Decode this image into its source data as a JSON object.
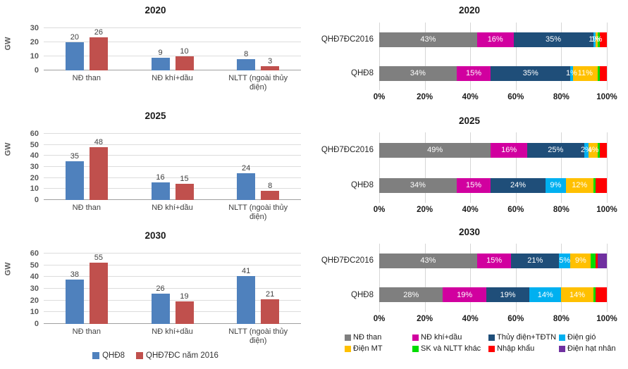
{
  "page": {
    "background": "#ffffff"
  },
  "left_panel": {
    "unit_label": "GW",
    "legend": [
      {
        "label": "QHĐ8",
        "color": "#4F81BD"
      },
      {
        "label": "QHĐ7ĐC năm 2016",
        "color": "#C0504D"
      }
    ]
  },
  "right_panel": {
    "legend": [
      {
        "label": "NĐ than",
        "color": "#7F7F7F"
      },
      {
        "label": "NĐ khí+dầu",
        "color": "#D1009F"
      },
      {
        "label": "Thủy điện+TĐTN",
        "color": "#1F4E79"
      },
      {
        "label": "Điện gió",
        "color": "#00B0F0"
      },
      {
        "label": "Điện MT",
        "color": "#FFC000"
      },
      {
        "label": "SK và NLTT khác",
        "color": "#00DC00"
      },
      {
        "label": "Nhập khẩu",
        "color": "#FF0000"
      },
      {
        "label": "Điện hạt nhân",
        "color": "#7030A0"
      }
    ]
  },
  "chart_data": [
    {
      "type": "bar",
      "title": "2020",
      "ylabel": "GW",
      "ylim": [
        0,
        30
      ],
      "yticks": [
        0,
        10,
        20,
        30
      ],
      "grid": true,
      "legend_position": "shared-bottom",
      "categories": [
        "NĐ than",
        "NĐ khí+dầu",
        "NLTT (ngoài thủy điện)"
      ],
      "series": [
        {
          "name": "QHĐ8",
          "color": "#4F81BD",
          "values": [
            20,
            9,
            8
          ]
        },
        {
          "name": "QHĐ7ĐC năm 2016",
          "color": "#C0504D",
          "values": [
            26,
            10,
            3
          ]
        }
      ]
    },
    {
      "type": "bar",
      "title": "2025",
      "ylabel": "GW",
      "ylim": [
        0,
        60
      ],
      "yticks": [
        0,
        10,
        20,
        30,
        40,
        50,
        60
      ],
      "grid": true,
      "legend_position": "shared-bottom",
      "categories": [
        "NĐ than",
        "NĐ khí+dầu",
        "NLTT (ngoài thủy điện)"
      ],
      "series": [
        {
          "name": "QHĐ8",
          "color": "#4F81BD",
          "values": [
            35,
            16,
            24
          ]
        },
        {
          "name": "QHĐ7ĐC năm 2016",
          "color": "#C0504D",
          "values": [
            48,
            15,
            8
          ]
        }
      ]
    },
    {
      "type": "bar",
      "title": "2030",
      "ylabel": "GW",
      "ylim": [
        0,
        60
      ],
      "yticks": [
        0,
        10,
        20,
        30,
        40,
        50,
        60
      ],
      "grid": true,
      "legend_position": "shared-bottom",
      "categories": [
        "NĐ than",
        "NĐ khí+dầu",
        "NLTT (ngoài thủy điện)"
      ],
      "series": [
        {
          "name": "QHĐ8",
          "color": "#4F81BD",
          "values": [
            38,
            26,
            41
          ]
        },
        {
          "name": "QHĐ7ĐC năm 2016",
          "color": "#C0504D",
          "values": [
            55,
            19,
            21
          ]
        }
      ]
    },
    {
      "type": "stacked-bar-horizontal",
      "title": "2020",
      "xlim": [
        0,
        100
      ],
      "xticks": [
        0,
        20,
        40,
        60,
        80,
        100
      ],
      "xtick_labels": [
        "0%",
        "20%",
        "40%",
        "60%",
        "80%",
        "100%"
      ],
      "grid": true,
      "segment_keys": [
        "NĐ than",
        "NĐ khí+dầu",
        "Thủy điện+TĐTN",
        "Điện gió",
        "Điện MT",
        "SK và NLTT khác",
        "Nhập khẩu",
        "Điện hạt nhân"
      ],
      "rows": [
        {
          "name": "QHĐ7ĐC2016",
          "values": [
            43,
            16,
            35,
            1,
            1,
            1,
            3,
            0
          ],
          "labels": [
            "43%",
            "16%",
            "35%",
            "1%",
            "1%",
            "",
            "",
            ""
          ]
        },
        {
          "name": "QHĐ8",
          "values": [
            34,
            15,
            35,
            1,
            11,
            1,
            3,
            0
          ],
          "labels": [
            "34%",
            "15%",
            "35%",
            "1%",
            "11%",
            "",
            "",
            ""
          ]
        }
      ]
    },
    {
      "type": "stacked-bar-horizontal",
      "title": "2025",
      "xlim": [
        0,
        100
      ],
      "xticks": [
        0,
        20,
        40,
        60,
        80,
        100
      ],
      "xtick_labels": [
        "0%",
        "20%",
        "40%",
        "60%",
        "80%",
        "100%"
      ],
      "grid": true,
      "segment_keys": [
        "NĐ than",
        "NĐ khí+dầu",
        "Thủy điện+TĐTN",
        "Điện gió",
        "Điện MT",
        "SK và NLTT khác",
        "Nhập khẩu",
        "Điện hạt nhân"
      ],
      "rows": [
        {
          "name": "QHĐ7ĐC2016",
          "values": [
            49,
            16,
            25,
            2,
            4,
            1,
            3,
            0
          ],
          "labels": [
            "49%",
            "16%",
            "25%",
            "2%",
            "4%",
            "",
            "",
            ""
          ]
        },
        {
          "name": "QHĐ8",
          "values": [
            34,
            15,
            24,
            9,
            12,
            1,
            5,
            0
          ],
          "labels": [
            "34%",
            "15%",
            "24%",
            "9%",
            "12%",
            "",
            "",
            ""
          ]
        }
      ]
    },
    {
      "type": "stacked-bar-horizontal",
      "title": "2030",
      "xlim": [
        0,
        100
      ],
      "xticks": [
        0,
        20,
        40,
        60,
        80,
        100
      ],
      "xtick_labels": [
        "0%",
        "20%",
        "40%",
        "60%",
        "80%",
        "100%"
      ],
      "grid": true,
      "segment_keys": [
        "NĐ than",
        "NĐ khí+dầu",
        "Thủy điện+TĐTN",
        "Điện gió",
        "Điện MT",
        "SK và NLTT khác",
        "Nhập khẩu",
        "Điện hạt nhân"
      ],
      "rows": [
        {
          "name": "QHĐ7ĐC2016",
          "values": [
            43,
            15,
            21,
            5,
            9,
            2,
            1,
            4
          ],
          "labels": [
            "43%",
            "15%",
            "21%",
            "5%",
            "9%",
            "",
            "",
            ""
          ]
        },
        {
          "name": "QHĐ8",
          "values": [
            28,
            19,
            19,
            14,
            14,
            1,
            5,
            0
          ],
          "labels": [
            "28%",
            "19%",
            "19%",
            "14%",
            "14%",
            "",
            "",
            ""
          ]
        }
      ]
    }
  ]
}
